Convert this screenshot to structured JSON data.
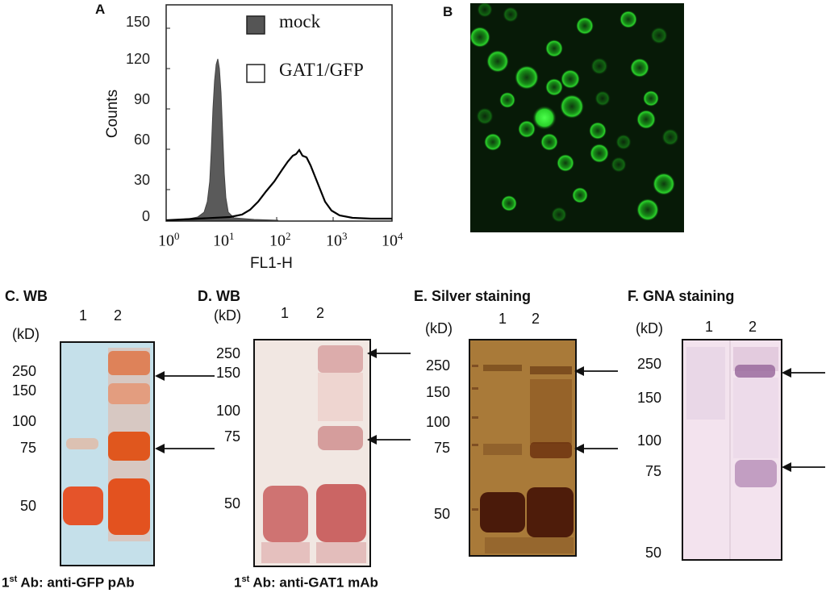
{
  "panelA": {
    "label": "A",
    "ylabel": "Counts",
    "xlabel": "FL1-H",
    "yticks": [
      "150",
      "120",
      "90",
      "60",
      "30",
      "0"
    ],
    "xticks": [
      {
        "base": "10",
        "exp": "0"
      },
      {
        "base": "10",
        "exp": "1"
      },
      {
        "base": "10",
        "exp": "2"
      },
      {
        "base": "10",
        "exp": "3"
      },
      {
        "base": "10",
        "exp": "4"
      }
    ],
    "legend": [
      {
        "label": "mock",
        "color": "#555555"
      },
      {
        "label": "GAT1/GFP",
        "color": "#ffffff"
      }
    ]
  },
  "panelB": {
    "label": "B"
  },
  "panelC": {
    "title": "C. WB",
    "kd": "(kD)",
    "lanes": [
      "1",
      "2"
    ],
    "markers": [
      "250",
      "150",
      "100",
      "75",
      "50"
    ],
    "antibody": {
      "pre": "1",
      "sup": "st",
      "post": " Ab: anti-GFP pAb"
    }
  },
  "panelD": {
    "title": "D. WB",
    "kd": "(kD)",
    "lanes": [
      "1",
      "2"
    ],
    "markers": [
      "250",
      "150",
      "100",
      "75",
      "50"
    ],
    "antibody": {
      "pre": "1",
      "sup": "st",
      "post": " Ab: anti-GAT1 mAb"
    }
  },
  "panelE": {
    "title": "E. Silver staining",
    "kd": "(kD)",
    "lanes": [
      "1",
      "2"
    ],
    "markers": [
      "250",
      "150",
      "100",
      "75",
      "50"
    ]
  },
  "panelF": {
    "title": "F. GNA staining",
    "kd": "(kD)",
    "lanes": [
      "1",
      "2"
    ],
    "markers": [
      "250",
      "150",
      "100",
      "75",
      "50"
    ]
  }
}
